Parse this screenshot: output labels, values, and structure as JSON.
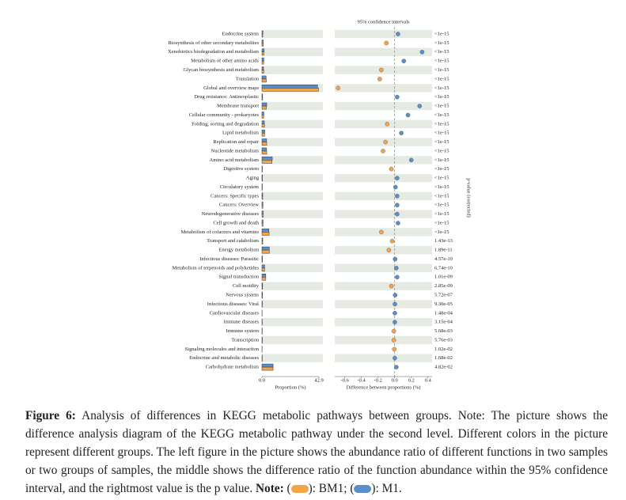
{
  "chart_data": [
    {
      "type": "hbar",
      "xlabel": "Proportion (%)",
      "xlim": [
        0,
        42.9
      ],
      "xticks": [
        {
          "value": 0,
          "label": "0.0"
        },
        42.9
      ],
      "categories": [
        "Endocrine system",
        "Biosynthesis of other secondary metabolites",
        "Xenobiotics biodegradation and metabolism",
        "Metabolism of other amino acids",
        "Glycan biosynthesis and metabolism",
        "Translation",
        "Global and overview maps",
        "Drug resistance: Antineoplastic",
        "Membrane transport",
        "Cellular community - prokaryotes",
        "Folding, sorting and degradation",
        "Lipid metabolism",
        "Replication and repair",
        "Nucleotide metabolism",
        "Amino acid metabolism",
        "Digestive system",
        "Aging",
        "Circulatory system",
        "Cancers: Specific types",
        "Cancers: Overview",
        "Neurodegenerative diseases",
        "Cell growth and death",
        "Metabolism of cofactors and vitamins",
        "Transport and catabolism",
        "Energy metabolism",
        "Infectious diseases: Parasitic",
        "Metabolism of terpenoids and polyketides",
        "Signal transduction",
        "Cell motility",
        "Nervous system",
        "Infectious diseases: Viral",
        "Cardiovascular diseases",
        "Immune diseases",
        "Immune system",
        "Transcription",
        "Signaling molecules and interaction",
        "Endocrine and metabolic diseases",
        "Carbohydrate metabolism"
      ],
      "series": [
        {
          "name": "M1",
          "color": "#5b8fc9",
          "values": [
            0.7,
            0.9,
            1.7,
            1.4,
            1.2,
            3.1,
            41.9,
            0.5,
            3.6,
            1.4,
            1.8,
            2.1,
            3.5,
            3.5,
            7.8,
            0.3,
            0.4,
            0.3,
            0.6,
            0.7,
            0.9,
            0.8,
            5.2,
            0.6,
            5.5,
            0.4,
            2.0,
            2.9,
            0.5,
            0.4,
            0.3,
            0.1,
            0.2,
            0.2,
            0.3,
            0.1,
            0.2,
            8.4
          ]
        },
        {
          "name": "BM1",
          "color": "#f5a449",
          "values": [
            0.6,
            1.0,
            1.4,
            1.3,
            1.4,
            3.3,
            42.6,
            0.5,
            3.3,
            1.3,
            1.9,
            2.0,
            3.6,
            3.6,
            7.6,
            0.3,
            0.4,
            0.3,
            0.6,
            0.7,
            0.9,
            0.8,
            5.4,
            0.6,
            5.6,
            0.4,
            2.0,
            2.9,
            0.5,
            0.4,
            0.3,
            0.1,
            0.2,
            0.2,
            0.3,
            0.1,
            0.2,
            8.4
          ]
        }
      ]
    },
    {
      "type": "dot",
      "title": "95% confidence intervals",
      "xlabel": "Difference between proportions (%)",
      "y2label": "p-value (corrected)",
      "xlim": [
        -0.72,
        0.45
      ],
      "xticks": [
        -0.6,
        -0.4,
        -0.2,
        {
          "value": 0,
          "label": "0.0"
        },
        0.2,
        0.4
      ],
      "values": [
        0.04,
        -0.1,
        0.33,
        0.11,
        -0.16,
        -0.18,
        -0.68,
        0.03,
        0.3,
        0.16,
        -0.09,
        0.08,
        -0.11,
        -0.14,
        0.2,
        -0.04,
        0.03,
        0.01,
        0.03,
        0.03,
        0.03,
        0.04,
        -0.16,
        -0.03,
        -0.07,
        0.005,
        0.02,
        0.03,
        -0.04,
        0.005,
        0.003,
        0.002,
        0.002,
        -0.01,
        -0.01,
        -0.005,
        0.002,
        0.02
      ],
      "p_values": [
        "<1e-15",
        "<1e-15",
        "<1e-15",
        "<1e-15",
        "<1e-15",
        "<1e-15",
        "<1e-15",
        "<1e-15",
        "<1e-15",
        "<1e-15",
        "<1e-15",
        "<1e-15",
        "<1e-15",
        "<1e-15",
        "<1e-15",
        "<1e-15",
        "<1e-15",
        "<1e-15",
        "<1e-15",
        "<1e-15",
        "<1e-15",
        "<1e-15",
        "<1e-15",
        "1.43e-13",
        "1.89e-11",
        "4.57e-10",
        "6.74e-10",
        "1.01e-09",
        "2.85e-09",
        "5.72e-07",
        "9.30e-05",
        "1.48e-04",
        "3.15e-04",
        "5.68e-03",
        "5.76e-03",
        "1.02e-02",
        "1.68e-02",
        "4.82e-02"
      ]
    }
  ],
  "caption": {
    "label": "Figure 6:",
    "text": "Analysis of differences in KEGG metabolic pathways between groups. Note: The picture shows the difference analysis diagram of the KEGG metabolic pathway under the second level. Different colors in the picture represent different groups. The left figure in the picture shows the abundance ratio of different functions in two samples or two groups of samples, the middle shows the difference ratio of the function abundance within the 95% confidence interval, and the rightmost value is the p value.",
    "note_label": "Note:",
    "note_parts": [
      "(",
      "): ",
      "; (",
      "): ",
      "."
    ]
  }
}
